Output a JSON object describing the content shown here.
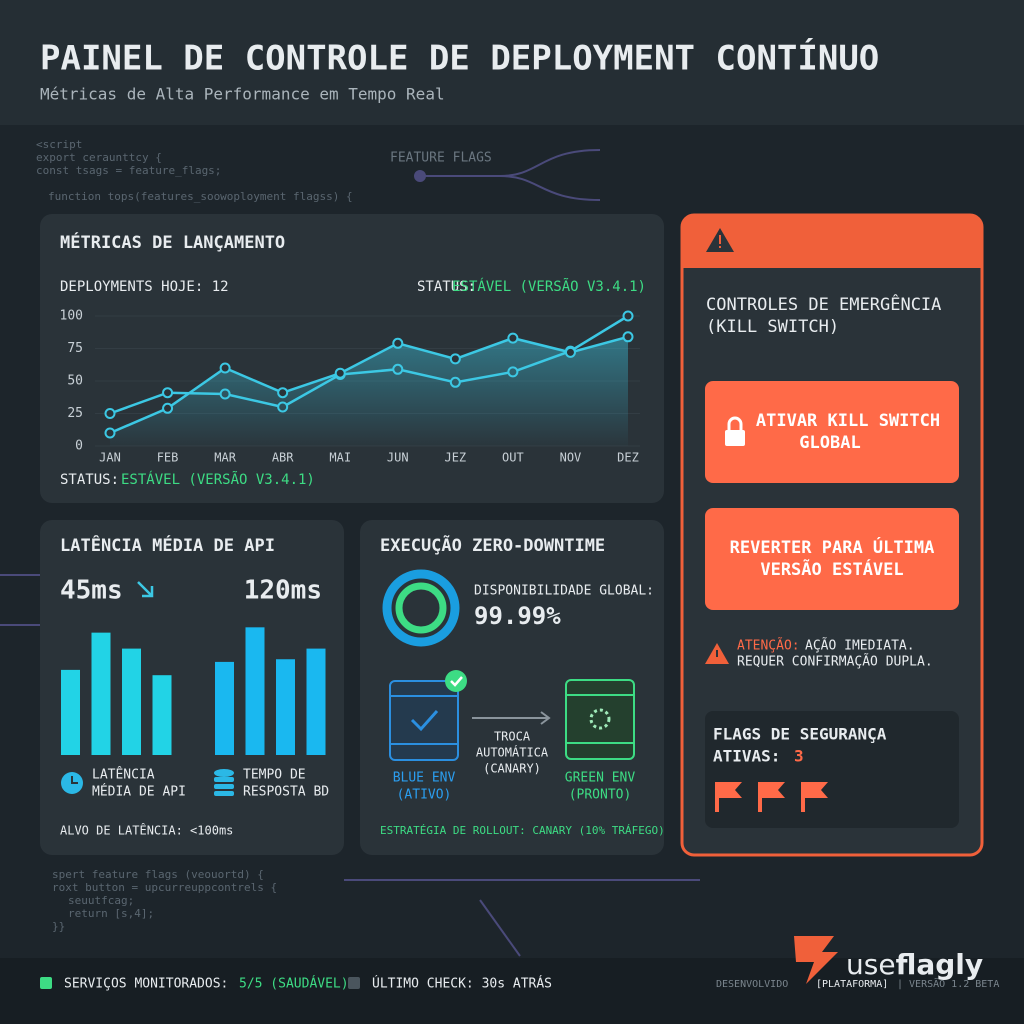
{
  "header": {
    "title": "PAINEL DE CONTROLE DE DEPLOYMENT CONTÍNUO",
    "subtitle": "Métricas de Alta Performance em Tempo Real"
  },
  "background": {
    "feature_flags": "FEATURE FLAGS",
    "code_top": [
      "<script",
      "export ceraunttcy {",
      "const tsags = feature_flags;",
      "function tops(features_soowoployment flagss) {"
    ],
    "code_bottom": [
      "spert feature flags (veouortd) {",
      "roxt button = upcurreuppcontrels {",
      "seuutfcag;",
      "return [s,4];",
      "}}"
    ]
  },
  "launch": {
    "title": "MÉTRICAS DE LANÇAMENTO",
    "deployments": "DEPLOYMENTS HOJE: 12",
    "status_label": "STATUS:",
    "status_value": "ESTÁVEL (VERSÃO V3.4.1)",
    "chart": {
      "type": "line",
      "categories": [
        "JAN",
        "FEB",
        "MAR",
        "ABR",
        "MAI",
        "JUN",
        "JEZ",
        "OUT",
        "NOV",
        "DEZ"
      ],
      "series": [
        {
          "color": "#3cc8e4",
          "values": [
            25,
            41,
            40,
            30,
            55,
            59,
            49,
            57,
            73,
            100
          ]
        },
        {
          "color": "#3cc8e4",
          "fill": true,
          "values": [
            10,
            29,
            60,
            41,
            56,
            79,
            67,
            83,
            72,
            84
          ]
        }
      ],
      "ylim": [
        0,
        100
      ],
      "yticks": [
        0,
        25,
        50,
        75,
        100
      ]
    },
    "bottom_status_label": "STATUS:",
    "bottom_status_value": "ESTÁVEL (VERSÃO V3.4.1)"
  },
  "latency": {
    "title": "LATÊNCIA MÉDIA DE API",
    "value_left": "45ms",
    "value_right": "120ms",
    "chart": {
      "type": "bar",
      "ylim": [
        0,
        100
      ],
      "series": [
        {
          "color": "#22d3e6",
          "values": [
            64,
            92,
            80,
            60
          ]
        },
        {
          "color": "#1ab8f0",
          "values": [
            70,
            96,
            72,
            80
          ]
        }
      ]
    },
    "legend_left": [
      "LATÊNCIA",
      "MÉDIA DE API"
    ],
    "legend_right": [
      "TEMPO DE",
      "RESPOSTA BD"
    ],
    "target": "ALVO DE LATÊNCIA: <100ms"
  },
  "zero": {
    "title": "EXECUÇÃO ZERO-DOWNTIME",
    "availability_label": "DISPONIBILIDADE GLOBAL:",
    "availability_value": "99.99%",
    "blue_env": [
      "BLUE ENV",
      "(ATIVO)"
    ],
    "switch": [
      "TROCA",
      "AUTOMÁTICA",
      "(CANARY)"
    ],
    "green_env": [
      "GREEN ENV",
      "(PRONTO)"
    ],
    "strategy": "ESTRATÉGIA DE ROLLOUT: CANARY (10% TRÁFEGO)"
  },
  "emergency": {
    "title": [
      "CONTROLES DE EMERGÊNCIA",
      "(KILL SWITCH)"
    ],
    "kill_button": [
      "ATIVAR KILL SWITCH",
      "GLOBAL"
    ],
    "revert_button": [
      "REVERTER PARA ÚLTIMA",
      "VERSÃO ESTÁVEL"
    ],
    "warning_label": "ATENÇÃO:",
    "warning_text": "AÇÃO IMEDIATA.",
    "warning_text2": "REQUER CONFIRMAÇÃO DUPLA.",
    "flags_title": "FLAGS DE SEGURANÇA",
    "flags_label": "ATIVAS:",
    "flags_count": "3"
  },
  "footer": {
    "services_label": "SERVIÇOS MONITORADOS:",
    "services_value": "5/5 (SAUDÁVEL)",
    "last_check": "ÚLTIMO CHECK: 30s ATRÁS",
    "developed": "DESENVOLVIDO",
    "platform": "[PLATAFORMA]",
    "version": "| VERSÃO 1.2 BETA",
    "brand_a": "use",
    "brand_b": "flagly"
  }
}
